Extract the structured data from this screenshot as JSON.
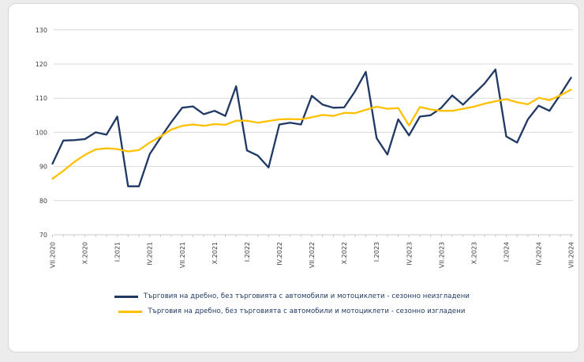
{
  "page": {
    "background_color": "#ececec",
    "card_background": "#ffffff",
    "card_border_color": "#d6d6d6"
  },
  "chart_data": {
    "type": "line",
    "title": "",
    "xlabel": "",
    "ylabel": "",
    "ylim": [
      70,
      130
    ],
    "y_ticks": [
      70,
      80,
      90,
      100,
      110,
      120,
      130
    ],
    "grid": "horizontal",
    "gridline_color": "#d9d9d9",
    "axis_color": "#c8c8c8",
    "tick_label_color": "#404040",
    "x_tick_every": 3,
    "x_tick_labels": [
      "VII.2020",
      "X.2020",
      "I.2021",
      "IV.2021",
      "VII.2021",
      "X.2021",
      "I.2022",
      "IV.2022",
      "VII.2022",
      "X.2022",
      "I.2023",
      "IV.2023",
      "VII.2023",
      "X.2023",
      "I.2024",
      "IV.2024",
      "VII.2024"
    ],
    "legend_position": "bottom",
    "series": [
      {
        "name": "Търговия на дребно, без търговията с автомобили и мотоциклети - сезонно неизгладени",
        "color": "#1f3864",
        "values": [
          90.8,
          97.6,
          97.7,
          98.0,
          100.0,
          99.3,
          104.6,
          84.2,
          84.2,
          93.6,
          98.4,
          103.0,
          107.2,
          107.6,
          105.3,
          106.3,
          104.8,
          113.5,
          94.7,
          93.2,
          89.7,
          102.3,
          102.8,
          102.3,
          110.7,
          108.1,
          107.2,
          107.3,
          112.0,
          117.7,
          98.3,
          93.5,
          103.8,
          99.1,
          104.6,
          105.0,
          107.2,
          110.8,
          108.1,
          111.2,
          114.3,
          118.4,
          98.8,
          97.0,
          103.8,
          107.8,
          106.3,
          111.0,
          116.0
        ]
      },
      {
        "name": "Търговия на дребно, без търговията с автомобили и мотоциклети - сезонно изгладени",
        "color": "#ffc000",
        "values": [
          86.4,
          88.7,
          91.3,
          93.4,
          95.0,
          95.3,
          95.1,
          94.4,
          94.8,
          97.0,
          98.8,
          100.8,
          101.9,
          102.3,
          101.9,
          102.4,
          102.2,
          103.4,
          103.4,
          102.8,
          103.3,
          103.8,
          103.9,
          103.8,
          104.4,
          105.1,
          104.8,
          105.7,
          105.6,
          106.6,
          107.5,
          106.9,
          107.1,
          102.0,
          107.4,
          106.7,
          106.3,
          106.3,
          106.9,
          107.5,
          108.4,
          109.1,
          109.7,
          108.8,
          108.2,
          110.1,
          109.4,
          110.8,
          112.5
        ]
      }
    ]
  },
  "legend": {
    "items": [
      {
        "label": "Търговия на дребно, без търговията с автомобили и мотоциклети - сезонно неизгладени",
        "color": "#1f3864"
      },
      {
        "label": "Търговия на дребно, без търговията с автомобили и мотоциклети - сезонно изгладени",
        "color": "#ffc000"
      }
    ]
  }
}
